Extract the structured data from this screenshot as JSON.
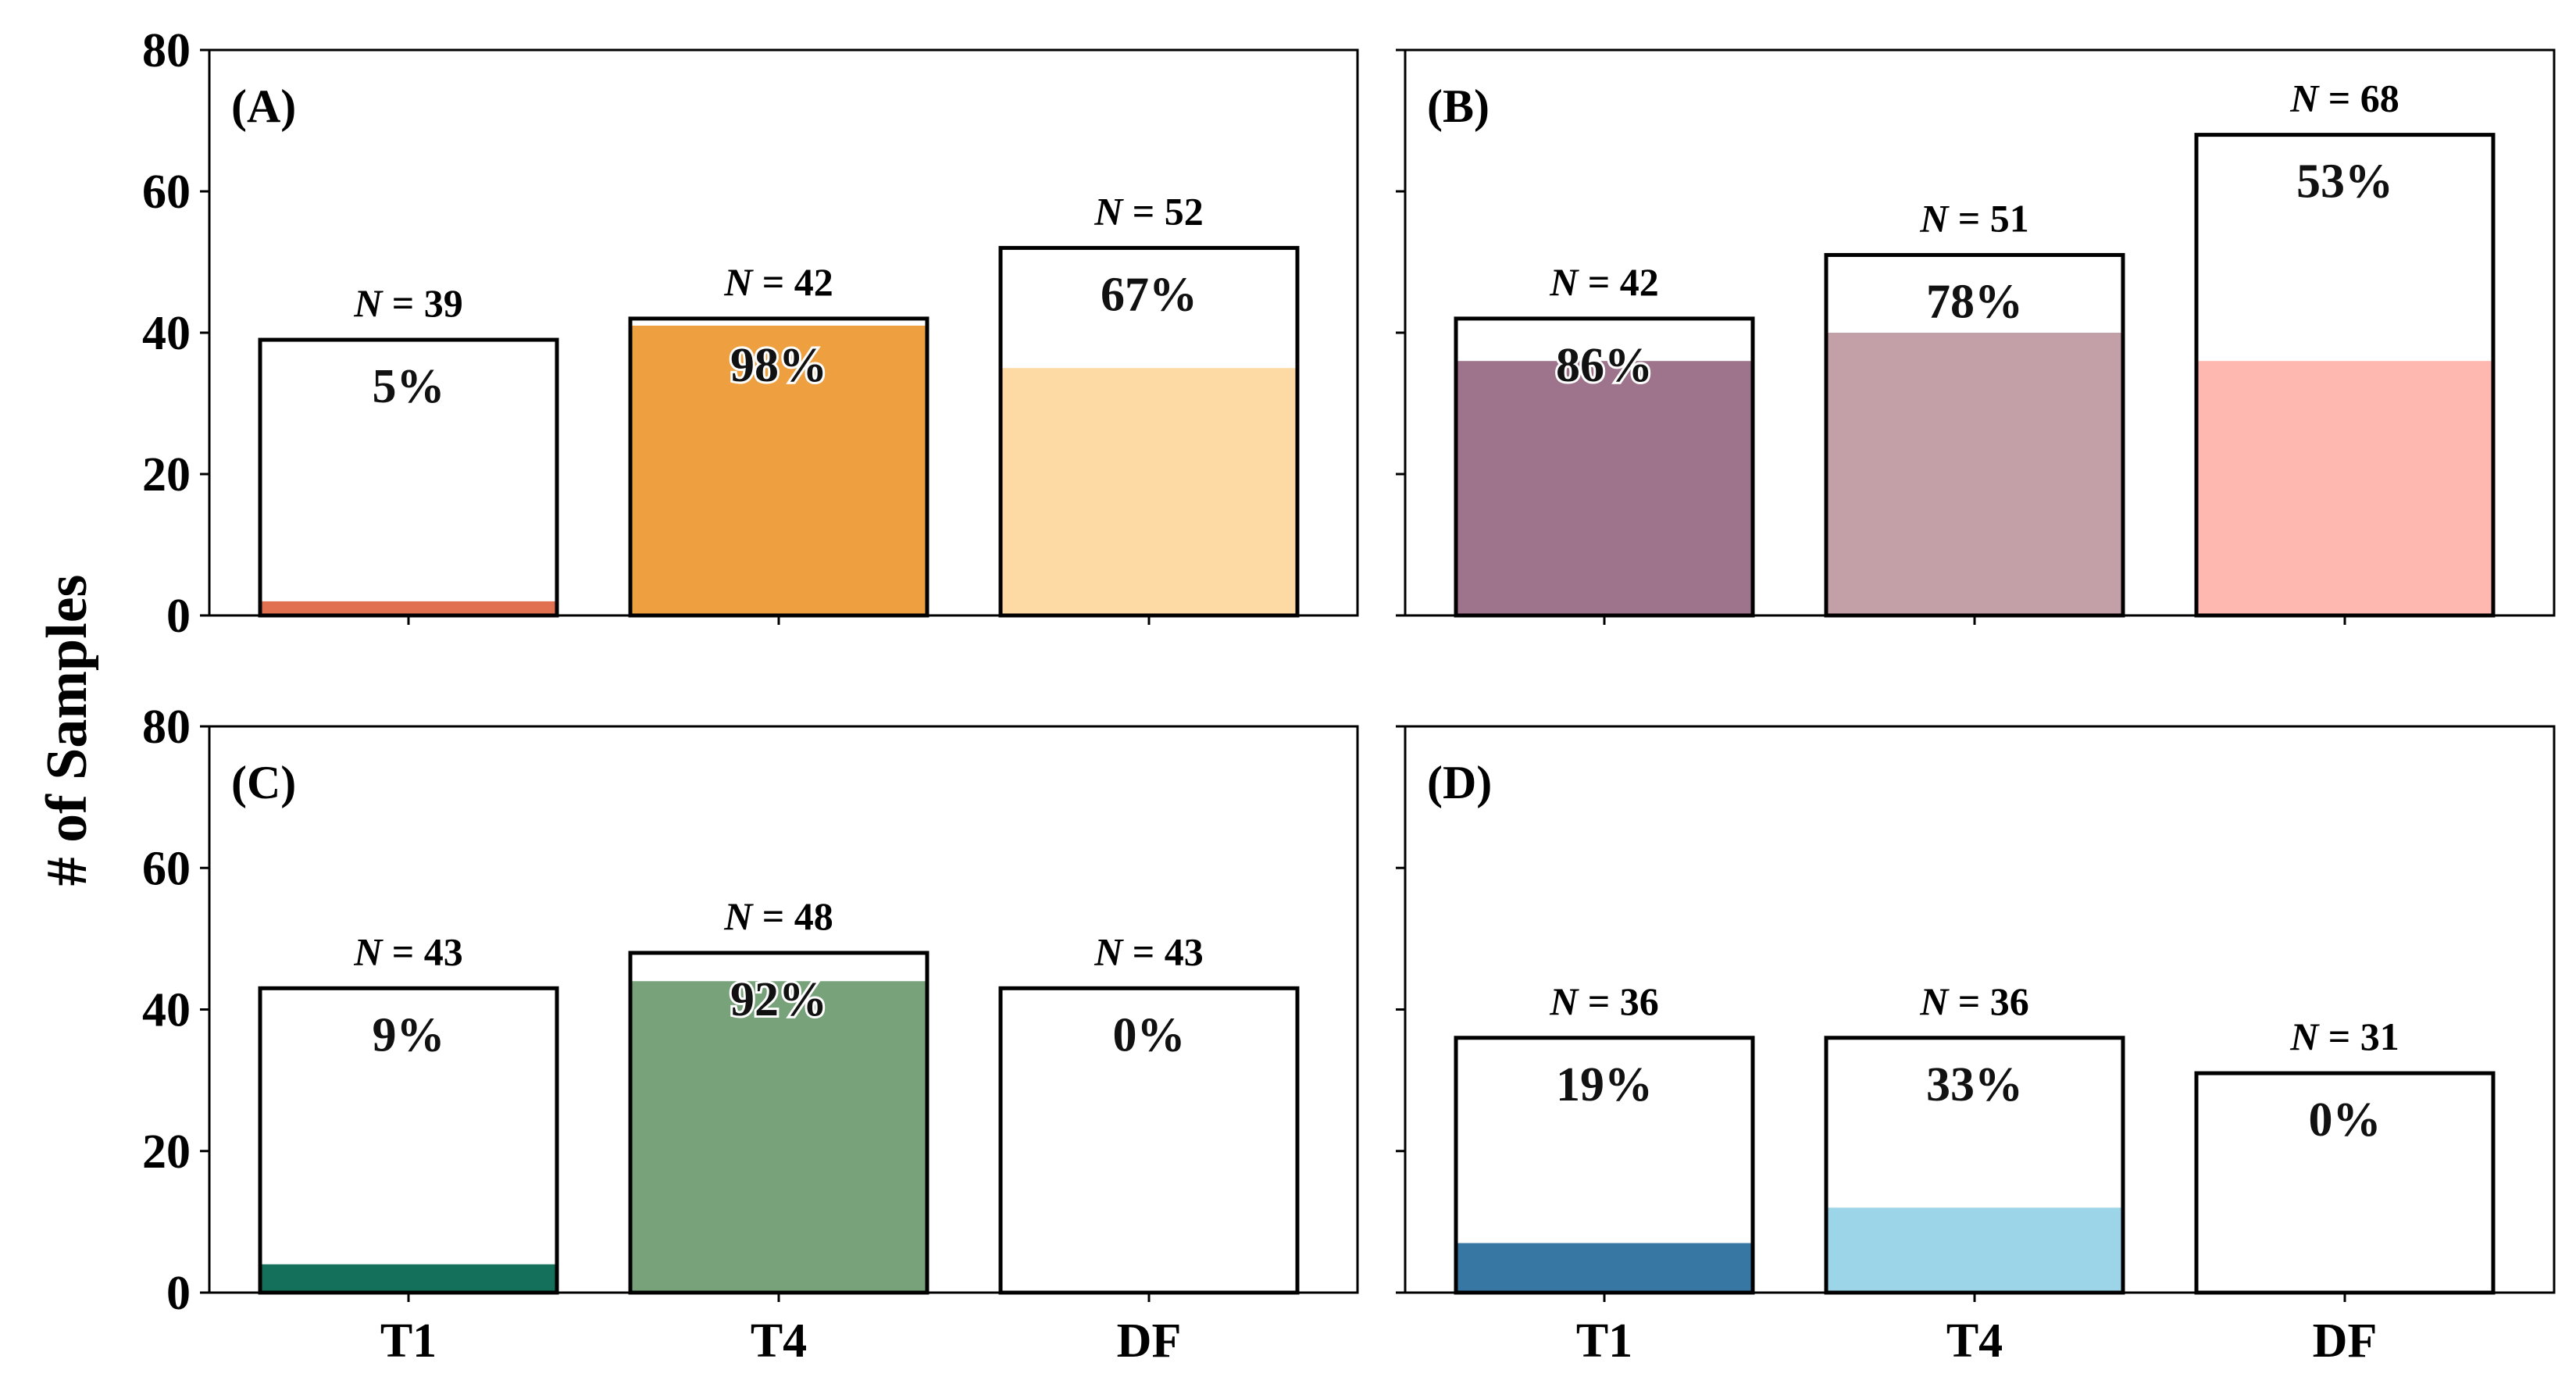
{
  "chart_data": {
    "type": "bar",
    "ylabel": "# of Samples",
    "ylim": [
      0,
      80
    ],
    "yticks": [
      "0",
      "20",
      "40",
      "60",
      "80"
    ],
    "categories": [
      "T1",
      "T4",
      "DF"
    ],
    "panels": [
      {
        "label": "(A)",
        "totals": [
          39,
          42,
          52
        ],
        "total_labels": [
          "N = 39",
          "N = 42",
          "N = 52"
        ],
        "filled": [
          2,
          41,
          35
        ],
        "percent_labels": [
          "5%",
          "98%",
          "67%"
        ],
        "colors": [
          "#e07050",
          "#ee9f40",
          "#fdd9a3"
        ]
      },
      {
        "label": "(B)",
        "totals": [
          42,
          51,
          68
        ],
        "total_labels": [
          "N = 42",
          "N = 51",
          "N = 68"
        ],
        "filled": [
          36,
          40,
          36
        ],
        "percent_labels": [
          "86%",
          "78%",
          "53%"
        ],
        "colors": [
          "#9e748c",
          "#c3a0a7",
          "#ffb8b0"
        ]
      },
      {
        "label": "(C)",
        "totals": [
          43,
          48,
          43
        ],
        "total_labels": [
          "N = 43",
          "N = 48",
          "N = 43"
        ],
        "filled": [
          4,
          44,
          0
        ],
        "percent_labels": [
          "9%",
          "92%",
          "0%"
        ],
        "colors": [
          "#14705a",
          "#77a27a",
          "#ffffff"
        ]
      },
      {
        "label": "(D)",
        "totals": [
          36,
          36,
          31
        ],
        "total_labels": [
          "N = 36",
          "N = 36",
          "N = 31"
        ],
        "filled": [
          7,
          12,
          0
        ],
        "percent_labels": [
          "19%",
          "33%",
          "0%"
        ],
        "colors": [
          "#3677a4",
          "#9dd5e8",
          "#ffffff"
        ]
      }
    ]
  }
}
